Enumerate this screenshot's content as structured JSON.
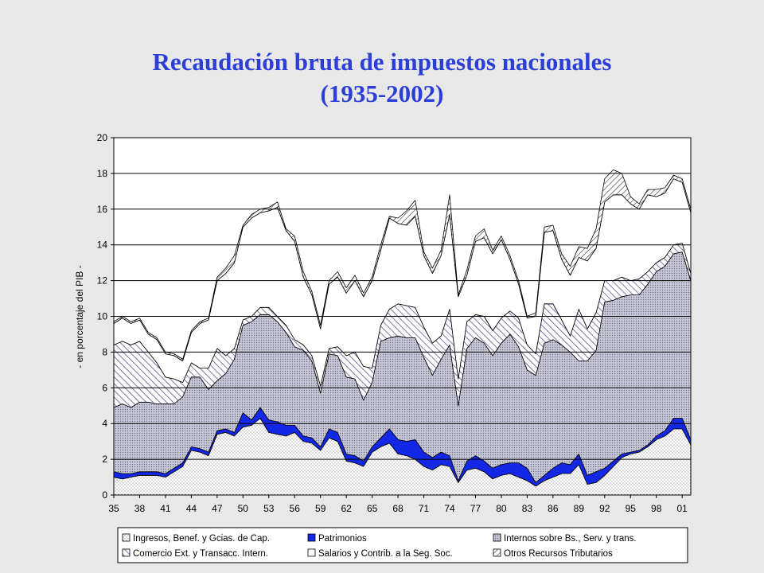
{
  "title": {
    "line1": "Recaudación bruta de impuestos nacionales",
    "line2": "(1935-2002)"
  },
  "colors": {
    "title": "#2b3fd6",
    "patrimonios": "#1228e6",
    "background": "#e8e8e8",
    "plot_background": "#ffffff"
  },
  "chart_data": {
    "type": "area",
    "stacked": true,
    "ylabel": "- en porcentaje del PIB -",
    "ylim": [
      0,
      20
    ],
    "yticks": [
      0,
      2,
      4,
      6,
      8,
      10,
      12,
      14,
      16,
      18,
      20
    ],
    "xticks": [
      "35",
      "38",
      "41",
      "44",
      "47",
      "50",
      "53",
      "56",
      "59",
      "62",
      "65",
      "68",
      "71",
      "74",
      "77",
      "80",
      "83",
      "86",
      "89",
      "92",
      "95",
      "98",
      "01"
    ],
    "x": [
      1935,
      1936,
      1937,
      1938,
      1939,
      1940,
      1941,
      1942,
      1943,
      1944,
      1945,
      1946,
      1947,
      1948,
      1949,
      1950,
      1951,
      1952,
      1953,
      1954,
      1955,
      1956,
      1957,
      1958,
      1959,
      1960,
      1961,
      1962,
      1963,
      1964,
      1965,
      1966,
      1967,
      1968,
      1969,
      1970,
      1971,
      1972,
      1973,
      1974,
      1975,
      1976,
      1977,
      1978,
      1979,
      1980,
      1981,
      1982,
      1983,
      1984,
      1985,
      1986,
      1987,
      1988,
      1989,
      1990,
      1991,
      1992,
      1993,
      1994,
      1995,
      1996,
      1997,
      1998,
      1999,
      2000,
      2001,
      2002
    ],
    "gridlines": true,
    "legend_position": "bottom",
    "series": [
      {
        "name": "Ingresos, Benef. y Gcias. de Cap.",
        "values": [
          1.0,
          0.9,
          1.0,
          1.1,
          1.1,
          1.1,
          1.0,
          1.3,
          1.6,
          2.5,
          2.4,
          2.2,
          3.4,
          3.5,
          3.3,
          3.8,
          3.9,
          4.3,
          3.5,
          3.4,
          3.3,
          3.5,
          3.0,
          2.9,
          2.5,
          3.2,
          3.0,
          1.9,
          1.8,
          1.6,
          2.4,
          2.7,
          2.9,
          2.3,
          2.2,
          2.0,
          1.6,
          1.4,
          1.7,
          1.6,
          0.7,
          1.4,
          1.5,
          1.3,
          0.9,
          1.1,
          1.2,
          1.0,
          0.8,
          0.5,
          0.8,
          1.0,
          1.2,
          1.2,
          1.7,
          0.6,
          0.7,
          1.1,
          1.6,
          2.1,
          2.3,
          2.4,
          2.7,
          3.1,
          3.3,
          3.7,
          3.7,
          2.8
        ]
      },
      {
        "name": "Patrimonios",
        "values": [
          0.3,
          0.3,
          0.2,
          0.2,
          0.2,
          0.2,
          0.2,
          0.2,
          0.2,
          0.2,
          0.2,
          0.2,
          0.2,
          0.2,
          0.2,
          0.8,
          0.3,
          0.6,
          0.7,
          0.7,
          0.6,
          0.4,
          0.3,
          0.3,
          0.2,
          0.5,
          0.5,
          0.4,
          0.4,
          0.3,
          0.3,
          0.5,
          0.8,
          0.8,
          0.8,
          1.1,
          0.8,
          0.7,
          0.7,
          0.6,
          0.1,
          0.5,
          0.7,
          0.6,
          0.6,
          0.6,
          0.6,
          0.8,
          0.7,
          0.2,
          0.3,
          0.5,
          0.6,
          0.5,
          0.6,
          0.5,
          0.6,
          0.4,
          0.3,
          0.2,
          0.1,
          0.1,
          0.1,
          0.2,
          0.3,
          0.6,
          0.6,
          0.3
        ]
      },
      {
        "name": "Internos sobre Bs., Serv. y trans.",
        "values": [
          3.6,
          3.9,
          3.7,
          3.9,
          3.9,
          3.8,
          3.9,
          3.6,
          3.7,
          3.9,
          4.0,
          3.5,
          2.8,
          3.1,
          4.1,
          4.9,
          5.5,
          5.2,
          5.9,
          5.6,
          5.2,
          4.4,
          4.8,
          4.3,
          3.0,
          4.2,
          4.3,
          4.3,
          4.3,
          3.4,
          3.6,
          5.4,
          5.1,
          5.8,
          5.8,
          5.7,
          5.3,
          4.6,
          5.2,
          6.2,
          4.2,
          6.3,
          6.6,
          6.6,
          6.3,
          6.8,
          7.2,
          6.5,
          5.5,
          6.0,
          7.4,
          7.2,
          6.6,
          6.3,
          5.2,
          6.4,
          6.8,
          9.3,
          9.0,
          8.8,
          8.8,
          8.7,
          9.0,
          9.2,
          9.2,
          9.2,
          9.3,
          8.9
        ]
      },
      {
        "name": "Comercio Ext. y Transacc. Intern.",
        "values": [
          3.5,
          3.5,
          3.5,
          3.4,
          2.8,
          2.3,
          1.5,
          1.4,
          0.8,
          0.8,
          0.5,
          1.2,
          1.8,
          1.0,
          0.6,
          0.3,
          0.3,
          0.4,
          0.4,
          0.3,
          0.4,
          0.4,
          0.3,
          0.3,
          0.4,
          0.3,
          0.5,
          1.2,
          1.5,
          1.9,
          0.8,
          0.9,
          1.6,
          1.8,
          1.8,
          1.7,
          1.7,
          1.8,
          1.3,
          2.0,
          1.5,
          1.5,
          1.3,
          1.5,
          1.4,
          1.4,
          1.3,
          1.6,
          1.4,
          1.2,
          2.2,
          2.0,
          1.4,
          0.9,
          2.9,
          1.8,
          2.1,
          1.2,
          1.1,
          1.1,
          0.8,
          0.9,
          0.7,
          0.5,
          0.5,
          0.5,
          0.5,
          0.4
        ]
      },
      {
        "name": "Salarios y Contrib. a la Seg. Soc.",
        "values": [
          1.2,
          1.3,
          1.2,
          1.2,
          1.0,
          1.3,
          1.3,
          1.3,
          1.2,
          1.7,
          2.5,
          2.7,
          3.8,
          4.6,
          4.8,
          5.2,
          5.5,
          5.3,
          5.4,
          6.1,
          5.3,
          5.5,
          3.8,
          3.4,
          3.2,
          3.6,
          3.9,
          3.5,
          4.0,
          3.9,
          4.9,
          4.2,
          5.1,
          4.5,
          4.5,
          5.1,
          4.0,
          3.9,
          4.5,
          5.3,
          4.6,
          2.6,
          4.1,
          4.4,
          4.3,
          4.4,
          2.9,
          1.9,
          1.5,
          2.1,
          4.0,
          4.1,
          3.4,
          3.4,
          2.9,
          3.8,
          3.6,
          4.4,
          4.8,
          4.6,
          4.3,
          3.9,
          4.3,
          3.7,
          3.6,
          3.7,
          3.4,
          3.4
        ]
      },
      {
        "name": "Otros Recursos Tributarios",
        "values": [
          0.1,
          0.1,
          0.1,
          0.1,
          0.1,
          0.1,
          0.1,
          0.1,
          0.1,
          0.1,
          0.1,
          0.1,
          0.2,
          0.3,
          0.4,
          0.1,
          0.2,
          0.2,
          0.2,
          0.3,
          0.1,
          0.3,
          0.3,
          0.2,
          0.2,
          0.2,
          0.3,
          0.3,
          0.3,
          0.2,
          0.2,
          0.3,
          0.1,
          0.3,
          0.8,
          0.9,
          0.2,
          0.3,
          0.3,
          1.1,
          0.1,
          0.3,
          0.3,
          0.5,
          0.2,
          0.2,
          0.2,
          0.2,
          0.1,
          0.2,
          0.3,
          0.3,
          0.3,
          0.5,
          0.6,
          0.7,
          1.1,
          1.3,
          1.4,
          1.2,
          0.4,
          0.3,
          0.3,
          0.4,
          0.3,
          0.2,
          0.2,
          0.2
        ]
      }
    ]
  }
}
